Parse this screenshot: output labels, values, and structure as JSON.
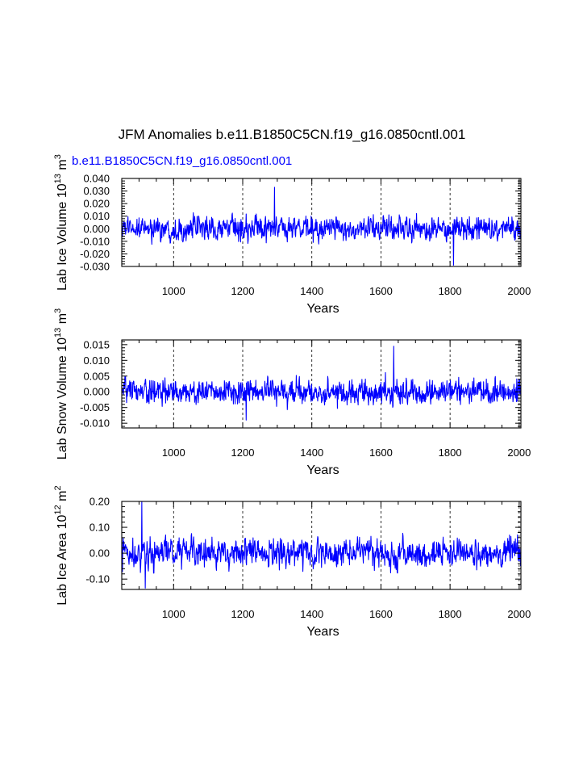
{
  "figure": {
    "title": "JFM Anomalies b.e11.B1850C5CN.f19_g16.0850cntl.001",
    "subtitle": "b.e11.B1850C5CN.f19_g16.0850cntl.001",
    "line_color": "#0000ff"
  },
  "chart_data": [
    {
      "type": "line",
      "name": "lab-ice-volume",
      "ylabel_main": "Lab Ice Volume 10",
      "ylabel_exp": "13",
      "ylabel_unit": " m",
      "ylabel_unit_exp": "3",
      "xlabel": "Years",
      "xlim": [
        850,
        2005
      ],
      "ylim": [
        -0.03,
        0.04
      ],
      "xticks": [
        1000,
        1200,
        1400,
        1600,
        1800,
        2000
      ],
      "yticks": [
        -0.03,
        -0.02,
        -0.01,
        0.0,
        0.01,
        0.02,
        0.03,
        0.04
      ],
      "ytick_labels": [
        "-0.030",
        "-0.020",
        "-0.010",
        "0.000",
        "0.010",
        "0.020",
        "0.030",
        "0.040"
      ],
      "grid_x": [
        1000,
        1200,
        1400,
        1600,
        1800,
        2000
      ],
      "series": [
        {
          "name": "b.e11.B1850C5CN.f19_g16.0850cntl.001",
          "year_start": 850,
          "year_end": 2005,
          "std": 0.0075,
          "ar": 0.3,
          "peak_max": 0.033,
          "peak_max_year": 1292,
          "peak_min": -0.029,
          "peak_min_year": 1810
        }
      ]
    },
    {
      "type": "line",
      "name": "lab-snow-volume",
      "ylabel_main": "Lab Snow Volume 10",
      "ylabel_exp": "13",
      "ylabel_unit": " m",
      "ylabel_unit_exp": "3",
      "xlabel": "Years",
      "xlim": [
        850,
        2005
      ],
      "ylim": [
        -0.0115,
        0.0165
      ],
      "xticks": [
        1000,
        1200,
        1400,
        1600,
        1800,
        2000
      ],
      "yticks": [
        -0.01,
        -0.005,
        0.0,
        0.005,
        0.01,
        0.015
      ],
      "ytick_labels": [
        "-0.010",
        "-0.005",
        "0.000",
        "0.005",
        "0.010",
        "0.015"
      ],
      "grid_x": [
        1000,
        1200,
        1400,
        1600,
        1800,
        2000
      ],
      "series": [
        {
          "name": "b.e11.B1850C5CN.f19_g16.0850cntl.001",
          "year_start": 850,
          "year_end": 2005,
          "std": 0.0031,
          "ar": 0.25,
          "peak_max": 0.0145,
          "peak_max_year": 1637,
          "peak_min": -0.009,
          "peak_min_year": 1210
        }
      ]
    },
    {
      "type": "line",
      "name": "lab-ice-area",
      "ylabel_main": "Lab Ice Area 10",
      "ylabel_exp": "12",
      "ylabel_unit": " m",
      "ylabel_unit_exp": "2",
      "xlabel": "Years",
      "xlim": [
        850,
        2005
      ],
      "ylim": [
        -0.14,
        0.2
      ],
      "xticks": [
        1000,
        1200,
        1400,
        1600,
        1800,
        2000
      ],
      "yticks": [
        -0.1,
        0.0,
        0.1,
        0.2
      ],
      "ytick_labels": [
        "-0.10",
        "0.00",
        "0.10",
        "0.20"
      ],
      "grid_x": [
        1000,
        1200,
        1400,
        1600,
        1800,
        2000
      ],
      "series": [
        {
          "name": "b.e11.B1850C5CN.f19_g16.0850cntl.001",
          "year_start": 850,
          "year_end": 2005,
          "std": 0.045,
          "ar": 0.35,
          "peak_max": 0.2,
          "peak_max_year": 908,
          "peak_min": -0.135,
          "peak_min_year": 918
        }
      ]
    }
  ]
}
